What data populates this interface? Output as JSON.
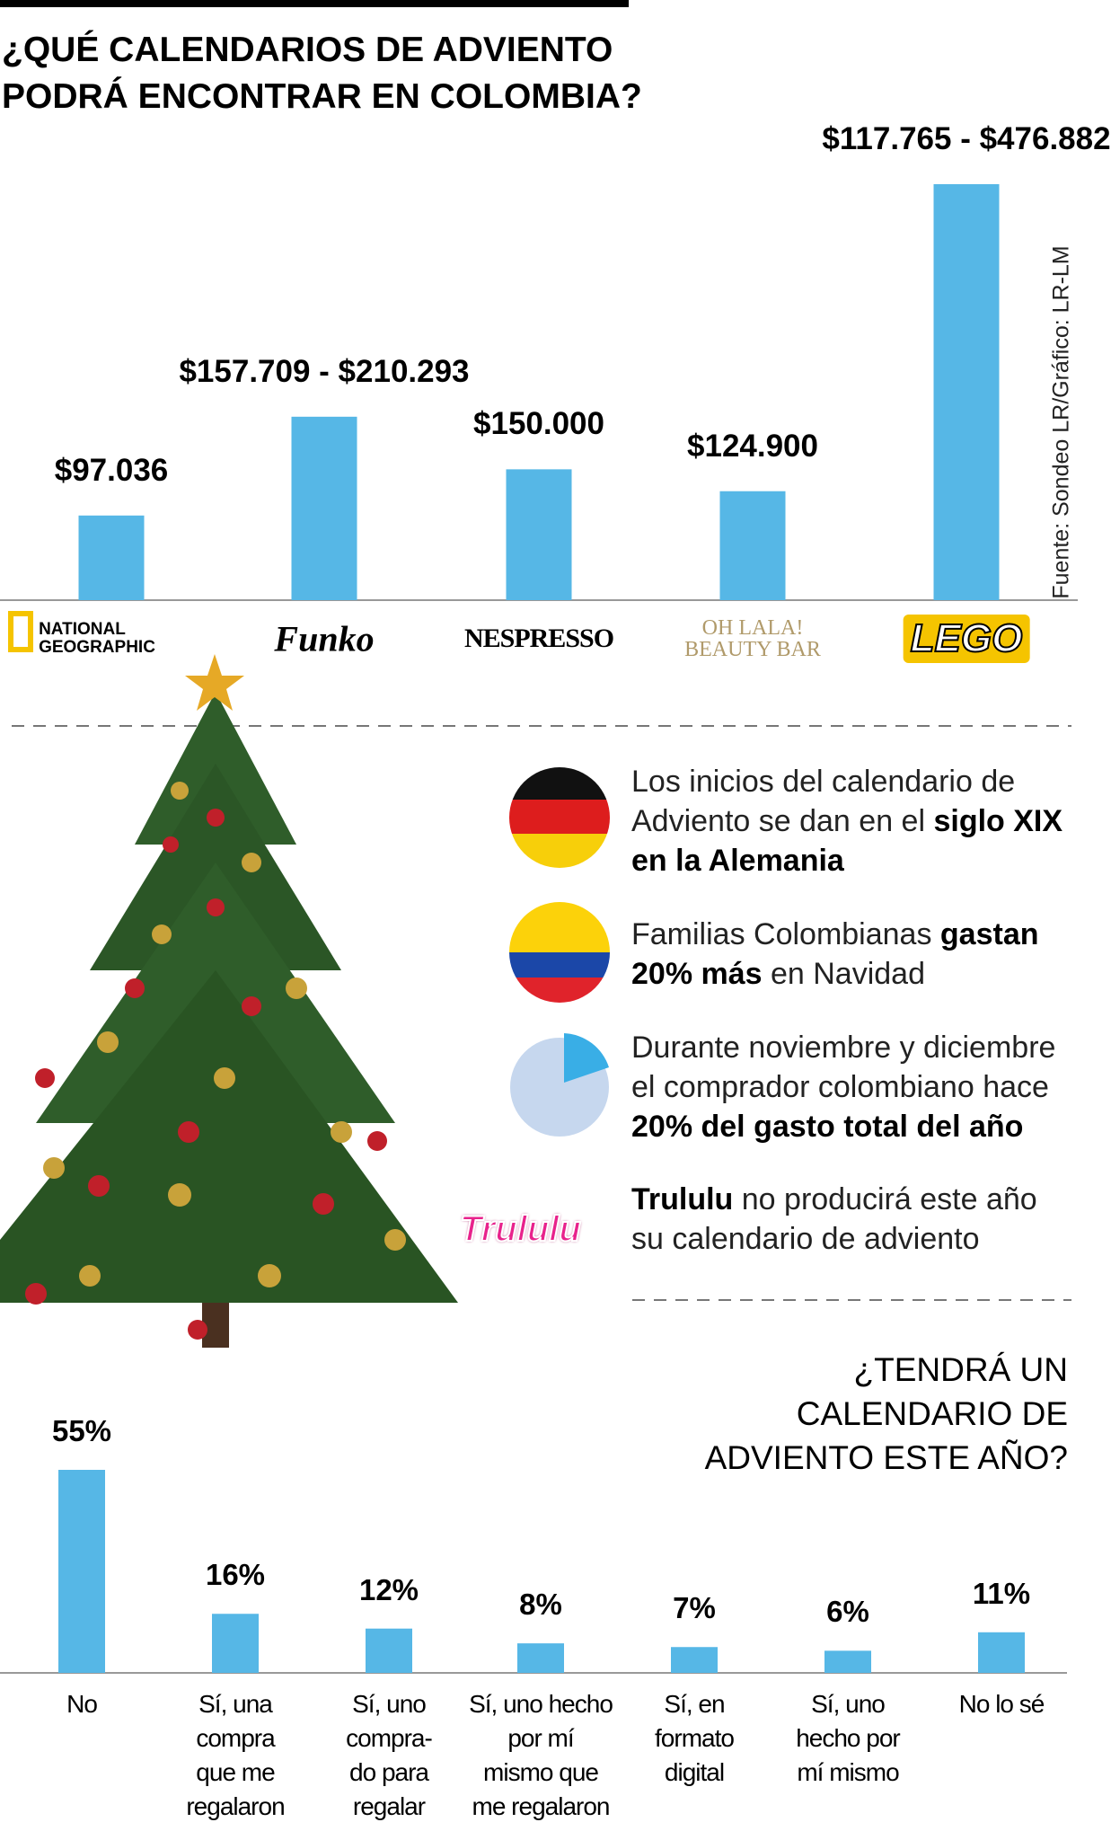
{
  "chart_data": [
    {
      "type": "bar",
      "title": "¿QUÉ CALENDARIOS DE ADVIENTO\nPODRÁ ENCONTRAR EN COLOMBIA?",
      "categories": [
        "NATIONAL\nGEOGRAPHIC",
        "Funko",
        "NESPRESSO",
        "OH LALA!\nBEAUTY BAR",
        "LEGO"
      ],
      "values": [
        97036,
        [
          157709,
          210293
        ],
        150000,
        124900,
        [
          117765,
          476882
        ]
      ],
      "value_labels": [
        "$97.036",
        "$157.709 - $210.293",
        "$150.000",
        "$124.900",
        "$117.765 - $476.882"
      ],
      "color": "#56b7e6"
    },
    {
      "type": "bar",
      "title": "¿TENDRÁ UN\nCALENDARIO DE\nADVIENTO ESTE AÑO?",
      "categories": [
        "No",
        "Sí, una\ncompra\nque me\nregalaron",
        "Sí, uno\ncompra-\ndo para\nregalar",
        "Sí, uno hecho\npor mí\nmismo que\nme regalaron",
        "Sí, en\nformato\ndigital",
        "Sí, uno\nhecho por\nmí mismo",
        "No lo sé"
      ],
      "values": [
        55,
        16,
        12,
        8,
        7,
        6,
        11
      ],
      "value_labels": [
        "55%",
        "16%",
        "12%",
        "8%",
        "7%",
        "6%",
        "11%"
      ],
      "color": "#56b7e6"
    }
  ],
  "source": "Fuente: Sondeo LR/Gráfico: LR-LM",
  "facts": [
    [
      {
        "text": "Los inicios del calendario de Adviento se dan en el "
      },
      {
        "text": "siglo XIX en la Alemania",
        "bold": true
      }
    ],
    [
      {
        "text": "Familias Colombianas "
      },
      {
        "text": "gastan 20% más",
        "bold": true
      },
      {
        "text": " en Navidad"
      }
    ],
    [
      {
        "text": "Durante noviembre y diciembre el comprador colombiano hace "
      },
      {
        "text": "20% del gasto total del año",
        "bold": true
      }
    ],
    [
      {
        "text": "Trululu",
        "bold": true
      },
      {
        "text": " no producirá este año su calendario de adviento"
      }
    ]
  ],
  "trululu_logo": "Trululu"
}
